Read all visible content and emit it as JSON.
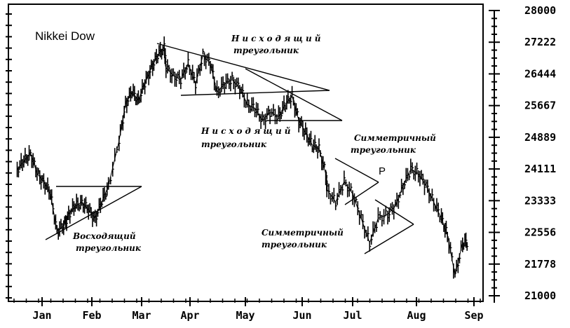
{
  "chart_data": {
    "type": "line",
    "title": "Nikkei Dow",
    "xlabel": "",
    "ylabel": "",
    "x_tick_labels": [
      "Jan",
      "Feb",
      "Mar",
      "Apr",
      "May",
      "Jun",
      "Jul",
      "Aug",
      "Sep"
    ],
    "y_tick_labels": [
      "28000",
      "27222",
      "26444",
      "25667",
      "24889",
      "24111",
      "23333",
      "22556",
      "21778",
      "21000"
    ],
    "ylim": [
      21000,
      28000
    ],
    "grid": false,
    "axis_position": "right",
    "series": [
      {
        "x": [
          "Jan 01",
          "Jan 05",
          "Jan 09",
          "Jan 13",
          "Jan 17",
          "Jan 21",
          "Jan 25",
          "Jan 29",
          "Feb 02",
          "Feb 06",
          "Feb 10",
          "Feb 14",
          "Feb 18",
          "Feb 22",
          "Feb 26",
          "Mar 02",
          "Mar 06",
          "Mar 10",
          "Mar 14",
          "Mar 18",
          "Mar 22",
          "Mar 26",
          "Mar 30",
          "Apr 03",
          "Apr 07",
          "Apr 11",
          "Apr 15",
          "Apr 19",
          "Apr 23",
          "Apr 27",
          "May 01",
          "May 05",
          "May 09",
          "May 13",
          "May 17",
          "May 21",
          "May 25",
          "May 29",
          "Jun 02",
          "Jun 06",
          "Jun 10",
          "Jun 14",
          "Jun 18",
          "Jun 22",
          "Jun 26",
          "Jun 30",
          "Jul 04",
          "Jul 08",
          "Jul 12",
          "Jul 16",
          "Jul 20",
          "Jul 24",
          "Jul 28",
          "Aug 01",
          "Aug 05",
          "Aug 09",
          "Aug 13",
          "Aug 17",
          "Aug 21",
          "Aug 25",
          "Aug 29",
          "Sep 02",
          "Sep 06",
          "Sep 10"
        ],
        "values": [
          24100,
          24300,
          24500,
          24000,
          23800,
          23500,
          22600,
          22700,
          23000,
          23200,
          23300,
          23100,
          22900,
          23300,
          23700,
          24800,
          25700,
          26000,
          25800,
          26200,
          26600,
          26900,
          27100,
          26600,
          26400,
          26300,
          26700,
          26200,
          26900,
          26700,
          26000,
          26200,
          26300,
          26100,
          25700,
          25600,
          25300,
          25500,
          25400,
          25700,
          25900,
          25300,
          25000,
          24700,
          24600,
          24000,
          23600,
          23300,
          23800,
          23500,
          22900,
          22300,
          22900,
          23000,
          23200,
          23700,
          24100,
          24000,
          23700,
          23300,
          22900,
          22500,
          21500,
          22300
        ]
      }
    ],
    "annotations": [
      "Нисходящий",
      "треугольник",
      "Нисходящий",
      "треугольник",
      "Симметричный",
      "треугольник",
      "P",
      "Восходящий",
      "треугольник",
      "Симметричный",
      "треугольник"
    ]
  }
}
